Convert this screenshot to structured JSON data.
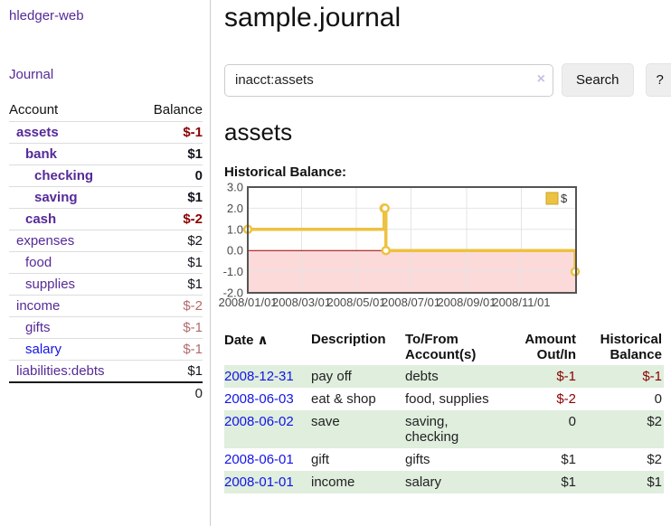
{
  "app": {
    "brand": "hledger-web"
  },
  "sidebar": {
    "journal_link": "Journal",
    "table": {
      "account_header": "Account",
      "balance_header": "Balance",
      "rows": [
        {
          "account": "assets",
          "balance": "$-1",
          "depth": 1,
          "bold": true,
          "negative": "strong"
        },
        {
          "account": "bank",
          "balance": "$1",
          "depth": 2,
          "bold": true,
          "negative": "none"
        },
        {
          "account": "checking",
          "balance": "0",
          "depth": 3,
          "bold": true,
          "negative": "none"
        },
        {
          "account": "saving",
          "balance": "$1",
          "depth": 3,
          "bold": true,
          "negative": "none"
        },
        {
          "account": "cash",
          "balance": "$-2",
          "depth": 2,
          "bold": true,
          "negative": "strong"
        },
        {
          "account": "expenses",
          "balance": "$2",
          "depth": 1,
          "bold": false,
          "negative": "none"
        },
        {
          "account": "food",
          "balance": "$1",
          "depth": 2,
          "bold": false,
          "negative": "none"
        },
        {
          "account": "supplies",
          "balance": "$1",
          "depth": 2,
          "bold": false,
          "negative": "none"
        },
        {
          "account": "income",
          "balance": "$-2",
          "depth": 1,
          "bold": false,
          "negative": "soft"
        },
        {
          "account": "gifts",
          "balance": "$-1",
          "depth": 2,
          "bold": false,
          "negative": "soft"
        },
        {
          "account": "salary",
          "balance": "$-1",
          "depth": 2,
          "bold": false,
          "negative": "soft",
          "link_color": "blue"
        },
        {
          "account": "liabilities:debts",
          "balance": "$1",
          "depth": 1,
          "bold": false,
          "negative": "none"
        }
      ],
      "total": "0"
    }
  },
  "header": {
    "title": "sample.journal"
  },
  "search": {
    "value": "inacct:assets",
    "clear_icon": "×",
    "button_label": "Search",
    "help_label": "?"
  },
  "account_page": {
    "title": "assets",
    "chart_label": "Historical Balance:"
  },
  "chart_data": {
    "type": "line",
    "step": true,
    "title": "Historical Balance:",
    "legend": "$",
    "legend_position": "top-right",
    "series": [
      {
        "name": "$",
        "color": "#edc240",
        "points": [
          [
            "2008-01-01",
            1
          ],
          [
            "2008-06-01",
            2
          ],
          [
            "2008-06-02",
            2
          ],
          [
            "2008-06-03",
            0
          ],
          [
            "2008-12-31",
            -1
          ]
        ]
      }
    ],
    "x_domain": [
      "2008-01-01",
      "2009-01-01"
    ],
    "x_ticks": [
      {
        "date": "2008-01-01",
        "label": "2008/01/01"
      },
      {
        "date": "2008-03-01",
        "label": "2008/03/01"
      },
      {
        "date": "2008-05-01",
        "label": "2008/05/01"
      },
      {
        "date": "2008-07-01",
        "label": "2008/07/01"
      },
      {
        "date": "2008-09-01",
        "label": "2008/09/01"
      },
      {
        "date": "2008-11-01",
        "label": "2008/11/01"
      }
    ],
    "y_ticks": [
      3.0,
      2.0,
      1.0,
      0.0,
      -1.0,
      -2.0
    ],
    "ylim": [
      -2,
      3
    ],
    "grid": true,
    "colors": {
      "grid": "#e4e4e4",
      "border": "#545454",
      "zero_line": "#990000",
      "negative_region": "#fcdada",
      "tick_text": "#4a4a4a"
    }
  },
  "register": {
    "sort_icon": "∧",
    "columns": [
      {
        "label": "Date",
        "align": "left",
        "sorted": true
      },
      {
        "label": "Description",
        "align": "left"
      },
      {
        "label": "To/From Account(s)",
        "align": "left"
      },
      {
        "label": "Amount Out/In",
        "align": "right"
      },
      {
        "label": "Historical Balance",
        "align": "right"
      }
    ],
    "rows": [
      {
        "date": "2008-12-31",
        "description": "pay off",
        "accounts": "debts",
        "amount": "$-1",
        "balance": "$-1",
        "amount_negative": true,
        "balance_negative": true,
        "shaded": true
      },
      {
        "date": "2008-06-03",
        "description": "eat & shop",
        "accounts": "food, supplies",
        "amount": "$-2",
        "balance": "0",
        "amount_negative": true,
        "balance_negative": false,
        "shaded": false
      },
      {
        "date": "2008-06-02",
        "description": "save",
        "accounts": "saving, checking",
        "amount": "0",
        "balance": "$2",
        "amount_negative": false,
        "balance_negative": false,
        "shaded": true
      },
      {
        "date": "2008-06-01",
        "description": "gift",
        "accounts": "gifts",
        "amount": "$1",
        "balance": "$2",
        "amount_negative": false,
        "balance_negative": false,
        "shaded": false
      },
      {
        "date": "2008-01-01",
        "description": "income",
        "accounts": "salary",
        "amount": "$1",
        "balance": "$1",
        "amount_negative": false,
        "balance_negative": false,
        "shaded": true
      }
    ]
  }
}
